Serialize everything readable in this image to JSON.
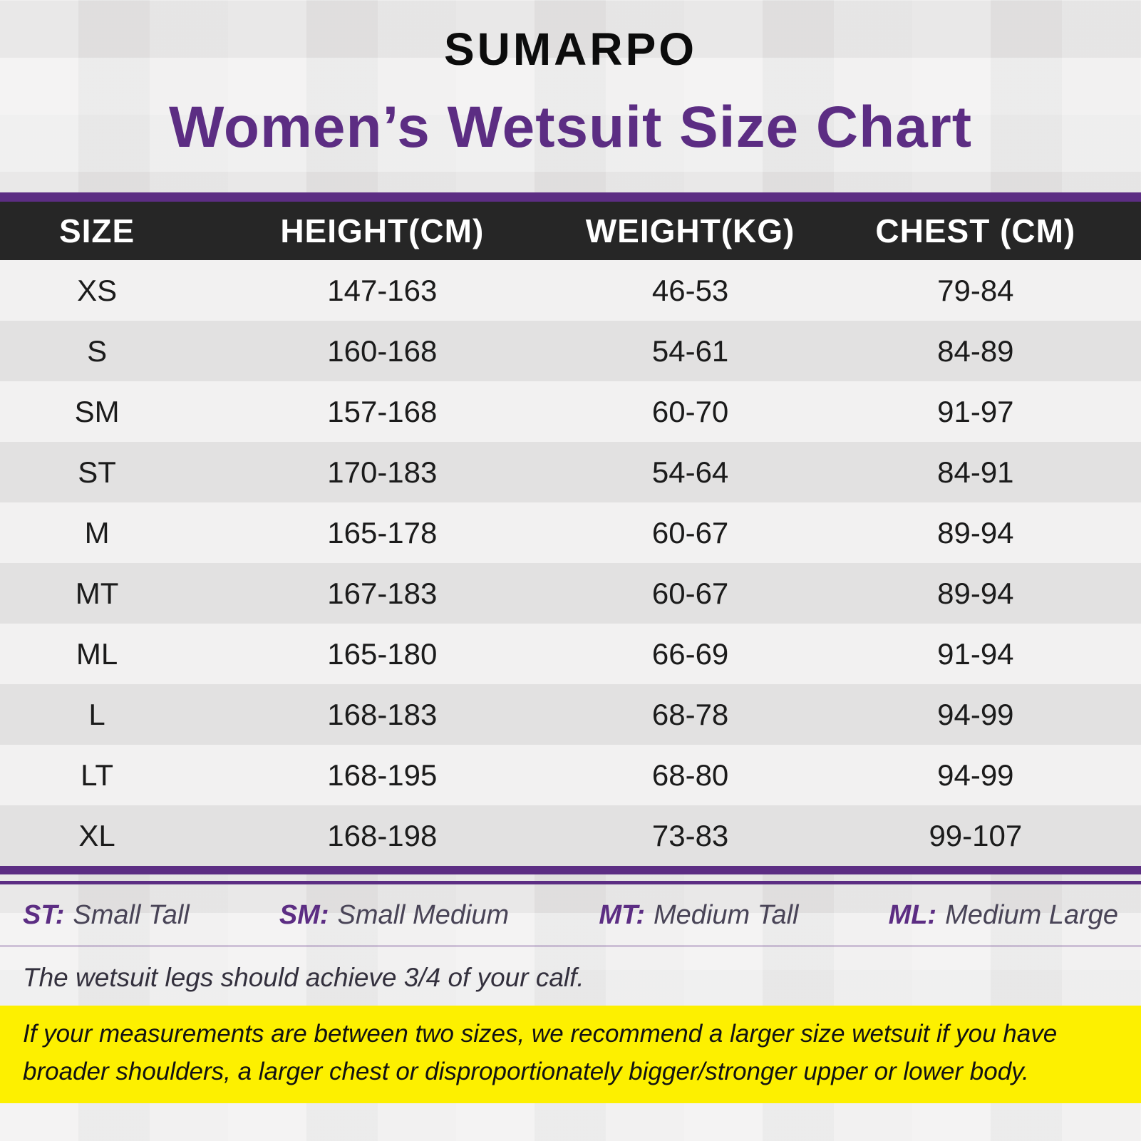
{
  "brand": {
    "logo": "SUMARPO"
  },
  "chart_data": {
    "type": "table",
    "title": "Women’s Wetsuit Size Chart",
    "columns": [
      "SIZE",
      "HEIGHT(CM)",
      "WEIGHT(KG)",
      "CHEST (CM)"
    ],
    "rows": [
      [
        "XS",
        "147-163",
        "46-53",
        "79-84"
      ],
      [
        "S",
        "160-168",
        "54-61",
        "84-89"
      ],
      [
        "SM",
        "157-168",
        "60-70",
        "91-97"
      ],
      [
        "ST",
        "170-183",
        "54-64",
        "84-91"
      ],
      [
        "M",
        "165-178",
        "60-67",
        "89-94"
      ],
      [
        "MT",
        "167-183",
        "60-67",
        "89-94"
      ],
      [
        "ML",
        "165-180",
        "66-69",
        "91-94"
      ],
      [
        "L",
        "168-183",
        "68-78",
        "94-99"
      ],
      [
        "LT",
        "168-195",
        "68-80",
        "94-99"
      ],
      [
        "XL",
        "168-198",
        "73-83",
        "99-107"
      ]
    ]
  },
  "legend": [
    {
      "abbr": "ST:",
      "label": "Small Tall"
    },
    {
      "abbr": "SM:",
      "label": "Small Medium"
    },
    {
      "abbr": "MT:",
      "label": "Medium Tall"
    },
    {
      "abbr": "ML:",
      "label": "Medium Large"
    }
  ],
  "notes": {
    "calf": "The wetsuit legs should achieve 3/4 of your calf.",
    "highlight": "If your measurements are between two sizes, we recommend a larger size wetsuit if you have broader shoulders, a larger chest or disproportionately bigger/stronger upper or lower body."
  },
  "colors": {
    "accent_purple": "#5c2d83",
    "header_dark": "#262626",
    "highlight_yellow": "#fdf000",
    "row_light": "#f2f1f1",
    "row_dark": "#e2e1e1"
  }
}
